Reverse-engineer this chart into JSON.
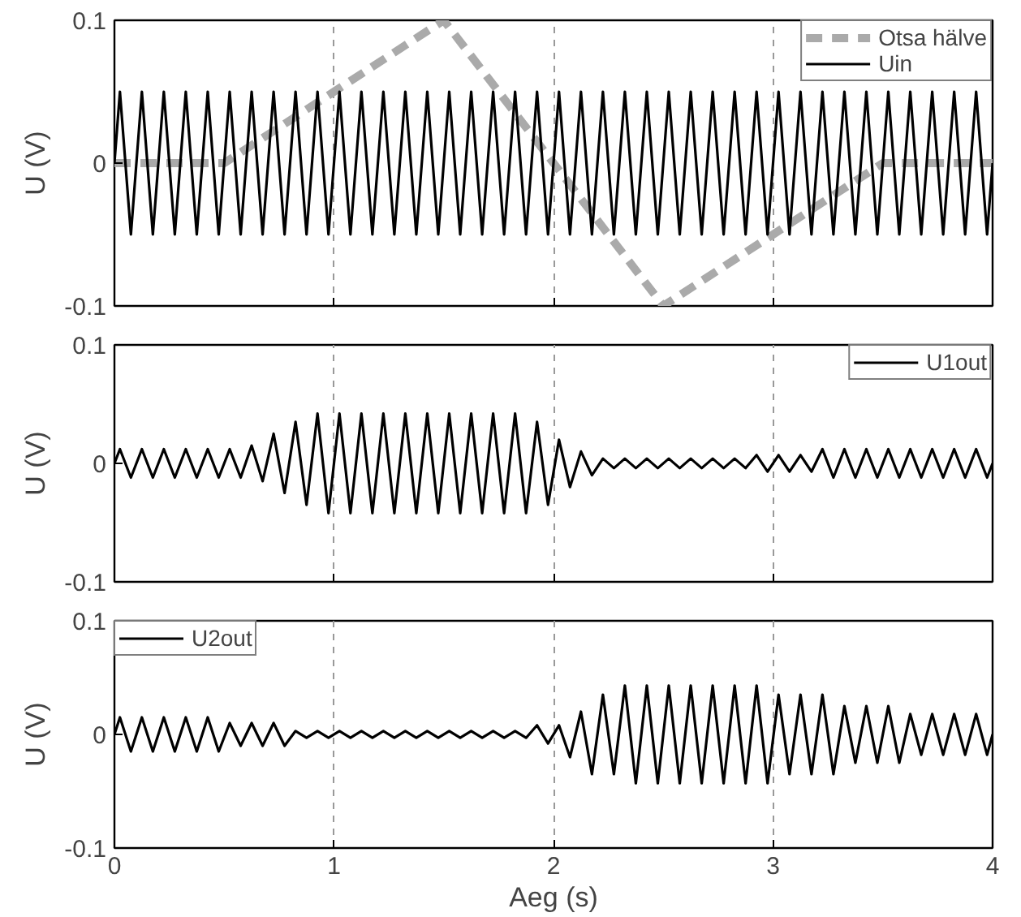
{
  "chart_data": [
    {
      "type": "line",
      "ylabel": "U (V)",
      "xlim": [
        0,
        4
      ],
      "ylim": [
        -0.1,
        0.1
      ],
      "xticks": [
        0,
        1,
        2,
        3,
        4
      ],
      "yticks": [
        -0.1,
        0,
        0.1
      ],
      "grid": "x",
      "legend": "top right",
      "tick_labels": "y",
      "x": [
        0,
        0.025,
        0.075,
        0.125,
        0.175,
        0.225,
        0.275,
        0.325,
        0.375,
        0.425,
        0.475,
        0.525,
        0.575,
        0.625,
        0.675,
        0.725,
        0.775,
        0.825,
        0.875,
        0.925,
        0.975,
        1.025,
        1.075,
        1.125,
        1.175,
        1.225,
        1.275,
        1.325,
        1.375,
        1.425,
        1.475,
        1.525,
        1.575,
        1.625,
        1.675,
        1.725,
        1.775,
        1.825,
        1.875,
        1.925,
        1.975,
        2.025,
        2.075,
        2.125,
        2.175,
        2.225,
        2.275,
        2.325,
        2.375,
        2.425,
        2.475,
        2.525,
        2.575,
        2.625,
        2.675,
        2.725,
        2.775,
        2.825,
        2.875,
        2.925,
        2.975,
        3.025,
        3.075,
        3.125,
        3.175,
        3.225,
        3.275,
        3.325,
        3.375,
        3.425,
        3.475,
        3.525,
        3.575,
        3.625,
        3.675,
        3.725,
        3.775,
        3.825,
        3.875,
        3.925,
        3.975,
        4
      ],
      "series": [
        {
          "name": "Otsa hälve",
          "color": "#aaaaaa",
          "line_style": "dashed",
          "x": [
            0,
            0.5,
            1.5,
            2.5,
            3.5,
            4
          ],
          "values": [
            0,
            0,
            0.1,
            -0.1,
            0,
            0
          ]
        },
        {
          "name": "Uin",
          "color": "#000000",
          "line_style": "solid",
          "values": [
            0,
            0.05,
            -0.05,
            0.05,
            -0.05,
            0.05,
            -0.05,
            0.05,
            -0.05,
            0.05,
            -0.05,
            0.05,
            -0.05,
            0.05,
            -0.05,
            0.05,
            -0.05,
            0.05,
            -0.05,
            0.05,
            -0.05,
            0.05,
            -0.05,
            0.05,
            -0.05,
            0.05,
            -0.05,
            0.05,
            -0.05,
            0.05,
            -0.05,
            0.05,
            -0.05,
            0.05,
            -0.05,
            0.05,
            -0.05,
            0.05,
            -0.05,
            0.05,
            -0.05,
            0.05,
            -0.05,
            0.05,
            -0.05,
            0.05,
            -0.05,
            0.05,
            -0.05,
            0.05,
            -0.05,
            0.05,
            -0.05,
            0.05,
            -0.05,
            0.05,
            -0.05,
            0.05,
            -0.05,
            0.05,
            -0.05,
            0.05,
            -0.05,
            0.05,
            -0.05,
            0.05,
            -0.05,
            0.05,
            -0.05,
            0.05,
            -0.05,
            0.05,
            -0.05,
            0.05,
            -0.05,
            0.05,
            -0.05,
            0.05,
            -0.05,
            0.05,
            -0.05,
            0
          ]
        }
      ]
    },
    {
      "type": "line",
      "ylabel": "U (V)",
      "xlim": [
        0,
        4
      ],
      "ylim": [
        -0.1,
        0.1
      ],
      "xticks": [
        0,
        1,
        2,
        3,
        4
      ],
      "yticks": [
        -0.1,
        0,
        0.1
      ],
      "grid": "x",
      "legend": "top right",
      "tick_labels": "y",
      "x": [
        0,
        0.025,
        0.075,
        0.125,
        0.175,
        0.225,
        0.275,
        0.325,
        0.375,
        0.425,
        0.475,
        0.525,
        0.575,
        0.625,
        0.675,
        0.725,
        0.775,
        0.825,
        0.875,
        0.925,
        0.975,
        1.025,
        1.075,
        1.125,
        1.175,
        1.225,
        1.275,
        1.325,
        1.375,
        1.425,
        1.475,
        1.525,
        1.575,
        1.625,
        1.675,
        1.725,
        1.775,
        1.825,
        1.875,
        1.925,
        1.975,
        2.025,
        2.075,
        2.125,
        2.175,
        2.225,
        2.275,
        2.325,
        2.375,
        2.425,
        2.475,
        2.525,
        2.575,
        2.625,
        2.675,
        2.725,
        2.775,
        2.825,
        2.875,
        2.925,
        2.975,
        3.025,
        3.075,
        3.125,
        3.175,
        3.225,
        3.275,
        3.325,
        3.375,
        3.425,
        3.475,
        3.525,
        3.575,
        3.625,
        3.675,
        3.725,
        3.775,
        3.825,
        3.875,
        3.925,
        3.975,
        4
      ],
      "series": [
        {
          "name": "U1out",
          "color": "#000000",
          "line_style": "solid",
          "values": [
            0,
            0.012,
            -0.012,
            0.012,
            -0.012,
            0.012,
            -0.012,
            0.012,
            -0.012,
            0.012,
            -0.012,
            0.012,
            -0.012,
            0.015,
            -0.015,
            0.025,
            -0.025,
            0.035,
            -0.035,
            0.042,
            -0.042,
            0.042,
            -0.042,
            0.042,
            -0.042,
            0.042,
            -0.042,
            0.042,
            -0.042,
            0.042,
            -0.042,
            0.042,
            -0.042,
            0.042,
            -0.042,
            0.042,
            -0.042,
            0.042,
            -0.042,
            0.035,
            -0.035,
            0.02,
            -0.02,
            0.01,
            -0.01,
            0.004,
            -0.004,
            0.004,
            -0.004,
            0.004,
            -0.004,
            0.004,
            -0.004,
            0.004,
            -0.004,
            0.004,
            -0.004,
            0.004,
            -0.004,
            0.007,
            -0.007,
            0.007,
            -0.007,
            0.007,
            -0.007,
            0.012,
            -0.012,
            0.012,
            -0.012,
            0.012,
            -0.012,
            0.012,
            -0.012,
            0.012,
            -0.012,
            0.012,
            -0.012,
            0.012,
            -0.012,
            0.012,
            -0.012,
            0
          ]
        }
      ]
    },
    {
      "type": "line",
      "ylabel": "U (V)",
      "xlabel": "Aeg (s)",
      "xlim": [
        0,
        4
      ],
      "ylim": [
        -0.1,
        0.1
      ],
      "xticks": [
        0,
        1,
        2,
        3,
        4
      ],
      "yticks": [
        -0.1,
        0,
        0.1
      ],
      "grid": "x",
      "legend": "top left",
      "x": [
        0,
        0.025,
        0.075,
        0.125,
        0.175,
        0.225,
        0.275,
        0.325,
        0.375,
        0.425,
        0.475,
        0.525,
        0.575,
        0.625,
        0.675,
        0.725,
        0.775,
        0.825,
        0.875,
        0.925,
        0.975,
        1.025,
        1.075,
        1.125,
        1.175,
        1.225,
        1.275,
        1.325,
        1.375,
        1.425,
        1.475,
        1.525,
        1.575,
        1.625,
        1.675,
        1.725,
        1.775,
        1.825,
        1.875,
        1.925,
        1.975,
        2.025,
        2.075,
        2.125,
        2.175,
        2.225,
        2.275,
        2.325,
        2.375,
        2.425,
        2.475,
        2.525,
        2.575,
        2.625,
        2.675,
        2.725,
        2.775,
        2.825,
        2.875,
        2.925,
        2.975,
        3.025,
        3.075,
        3.125,
        3.175,
        3.225,
        3.275,
        3.325,
        3.375,
        3.425,
        3.475,
        3.525,
        3.575,
        3.625,
        3.675,
        3.725,
        3.775,
        3.825,
        3.875,
        3.925,
        3.975,
        4
      ],
      "series": [
        {
          "name": "U2out",
          "color": "#000000",
          "line_style": "solid",
          "values": [
            0,
            0.015,
            -0.015,
            0.015,
            -0.015,
            0.015,
            -0.015,
            0.015,
            -0.015,
            0.015,
            -0.015,
            0.01,
            -0.01,
            0.01,
            -0.01,
            0.01,
            -0.01,
            0.003,
            -0.003,
            0.003,
            -0.003,
            0.003,
            -0.003,
            0.003,
            -0.003,
            0.003,
            -0.003,
            0.003,
            -0.003,
            0.003,
            -0.003,
            0.003,
            -0.003,
            0.003,
            -0.003,
            0.003,
            -0.003,
            0.003,
            -0.003,
            0.008,
            -0.008,
            0.008,
            -0.02,
            0.02,
            -0.035,
            0.035,
            -0.035,
            0.043,
            -0.043,
            0.043,
            -0.043,
            0.043,
            -0.043,
            0.043,
            -0.043,
            0.043,
            -0.043,
            0.043,
            -0.043,
            0.043,
            -0.043,
            0.035,
            -0.035,
            0.035,
            -0.035,
            0.035,
            -0.035,
            0.025,
            -0.025,
            0.025,
            -0.025,
            0.025,
            -0.025,
            0.018,
            -0.018,
            0.018,
            -0.018,
            0.018,
            -0.018,
            0.018,
            -0.018,
            0
          ]
        }
      ]
    }
  ]
}
